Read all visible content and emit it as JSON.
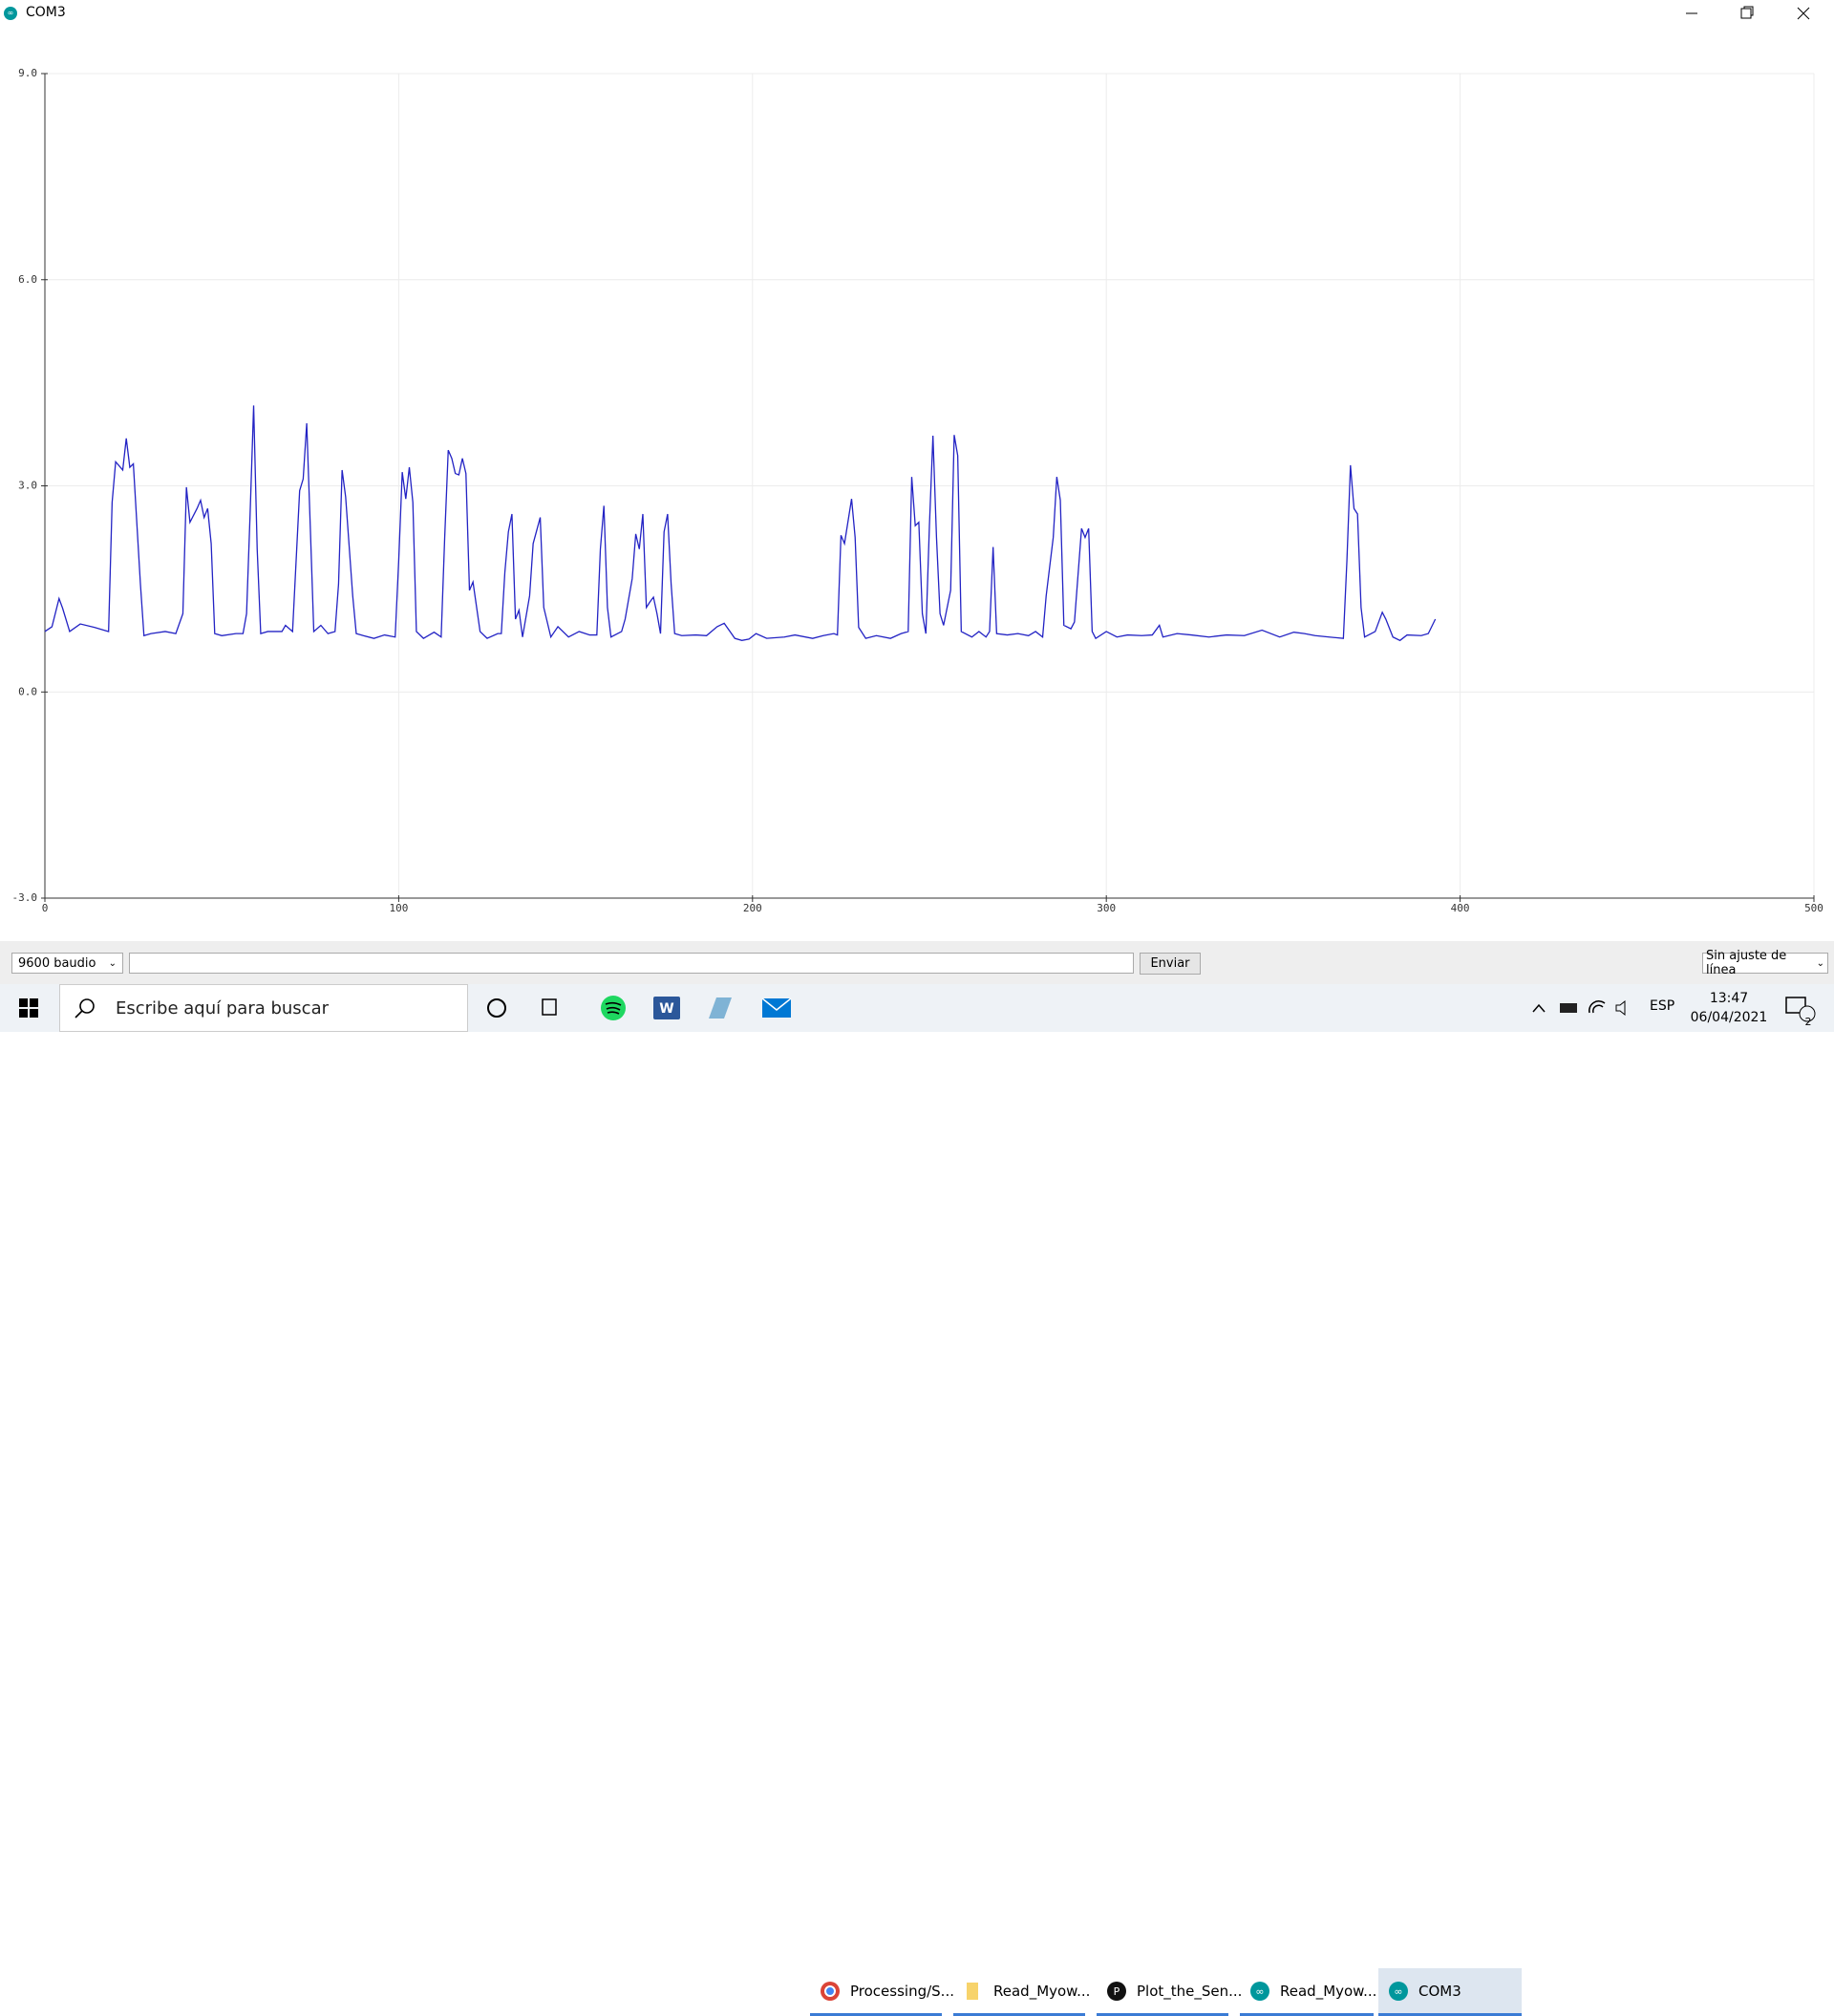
{
  "window": {
    "title": "COM3"
  },
  "chart_data": {
    "type": "line",
    "x": [
      0,
      2,
      4,
      5,
      7,
      10,
      14,
      18,
      19,
      20,
      22,
      23,
      24,
      25,
      27,
      28,
      30,
      34,
      37,
      39,
      40,
      41,
      43,
      44,
      45,
      46,
      47,
      48,
      50,
      54,
      56,
      57,
      58,
      59,
      60,
      61,
      63,
      67,
      68,
      70,
      72,
      73,
      74,
      75,
      76,
      78,
      80,
      82,
      83,
      84,
      85,
      87,
      88,
      90,
      93,
      96,
      99,
      100,
      101,
      102,
      103,
      104,
      105,
      107,
      110,
      112,
      113,
      114,
      115,
      116,
      117,
      118,
      119,
      120,
      121,
      123,
      125,
      128,
      129,
      130,
      131,
      132,
      133,
      134,
      135,
      137,
      138,
      140,
      141,
      143,
      145,
      148,
      151,
      154,
      156,
      157,
      158,
      159,
      160,
      163,
      164,
      166,
      167,
      168,
      169,
      170,
      171,
      172,
      173,
      174,
      175,
      176,
      177,
      178,
      180,
      184,
      187,
      190,
      192,
      195,
      197,
      199,
      201,
      204,
      209,
      212,
      217,
      220,
      223,
      224,
      225,
      226,
      228,
      229,
      230,
      232,
      235,
      239,
      242,
      244,
      245,
      246,
      247,
      248,
      249,
      250,
      251,
      252,
      253,
      254,
      256,
      257,
      258,
      259,
      262,
      264,
      266,
      267,
      268,
      269,
      272,
      275,
      278,
      280,
      282,
      283,
      285,
      286,
      287,
      288,
      290,
      291,
      293,
      294,
      295,
      296,
      297,
      300,
      303,
      306,
      310,
      313,
      315,
      316,
      320,
      324,
      329,
      334,
      339,
      344,
      349,
      353,
      356,
      359,
      363,
      367,
      368,
      369,
      370,
      371,
      372,
      373,
      376,
      378,
      379,
      381,
      383,
      385,
      389,
      391,
      393
    ],
    "values": [
      0.88,
      0.95,
      1.36,
      1.22,
      0.88,
      0.99,
      0.94,
      0.88,
      2.76,
      3.35,
      3.23,
      3.69,
      3.27,
      3.32,
      1.57,
      0.82,
      0.85,
      0.88,
      0.85,
      1.14,
      2.98,
      2.47,
      2.67,
      2.79,
      2.54,
      2.67,
      2.16,
      0.85,
      0.82,
      0.85,
      0.85,
      1.14,
      2.59,
      4.17,
      2.08,
      0.85,
      0.88,
      0.88,
      0.97,
      0.88,
      2.93,
      3.1,
      3.91,
      2.42,
      0.88,
      0.97,
      0.85,
      0.88,
      1.57,
      3.23,
      2.84,
      1.4,
      0.85,
      0.82,
      0.78,
      0.83,
      0.8,
      1.91,
      3.2,
      2.81,
      3.27,
      2.76,
      0.88,
      0.78,
      0.87,
      0.8,
      2.25,
      3.52,
      3.4,
      3.18,
      3.16,
      3.4,
      3.18,
      1.48,
      1.6,
      0.88,
      0.78,
      0.85,
      0.85,
      1.74,
      2.33,
      2.59,
      1.06,
      1.19,
      0.8,
      1.4,
      2.16,
      2.54,
      1.23,
      0.8,
      0.95,
      0.8,
      0.88,
      0.83,
      0.83,
      2.08,
      2.71,
      1.23,
      0.8,
      0.88,
      1.06,
      1.65,
      2.3,
      2.08,
      2.59,
      1.23,
      1.31,
      1.38,
      1.14,
      0.85,
      2.33,
      2.59,
      1.57,
      0.85,
      0.82,
      0.83,
      0.82,
      0.95,
      1.0,
      0.78,
      0.75,
      0.77,
      0.85,
      0.78,
      0.8,
      0.83,
      0.78,
      0.82,
      0.85,
      0.83,
      2.28,
      2.16,
      2.81,
      2.25,
      0.94,
      0.78,
      0.82,
      0.78,
      0.85,
      0.88,
      3.13,
      2.42,
      2.47,
      1.14,
      0.85,
      2.42,
      3.73,
      2.25,
      1.14,
      0.97,
      1.48,
      3.74,
      3.44,
      0.88,
      0.8,
      0.88,
      0.8,
      0.88,
      2.11,
      0.85,
      0.83,
      0.85,
      0.82,
      0.88,
      0.8,
      1.4,
      2.25,
      3.13,
      2.79,
      0.97,
      0.92,
      1.02,
      2.38,
      2.25,
      2.38,
      0.88,
      0.78,
      0.88,
      0.8,
      0.83,
      0.82,
      0.83,
      0.97,
      0.8,
      0.85,
      0.83,
      0.8,
      0.83,
      0.82,
      0.9,
      0.8,
      0.87,
      0.85,
      0.82,
      0.8,
      0.78,
      1.91,
      3.3,
      2.67,
      2.59,
      1.23,
      0.8,
      0.88,
      1.16,
      1.06,
      0.8,
      0.75,
      0.83,
      0.82,
      0.85,
      1.06
    ],
    "color": "#2323c4",
    "xlim": [
      0,
      500
    ],
    "ylim": [
      -3,
      9
    ],
    "xticks": [
      0,
      100,
      200,
      300,
      400,
      500
    ],
    "yticks": [
      {
        "value": -3,
        "label": "-3.0"
      },
      {
        "value": 0,
        "label": "0.0"
      },
      {
        "value": 3,
        "label": "3.0"
      },
      {
        "value": 6,
        "label": "6.0"
      },
      {
        "value": 9,
        "label": "9.0"
      }
    ],
    "grid": true
  },
  "controls": {
    "baud": "9600 baudio",
    "send": "Enviar",
    "line_ending": "Sin ajuste de línea"
  },
  "taskbar": {
    "search": "Escribe aquí para buscar",
    "apps": [
      "Processing/S...",
      "Read_Myow...",
      "Plot_the_Sen...",
      "Read_Myow...",
      "COM3"
    ],
    "language": "ESP",
    "time": "13:47",
    "date": "06/04/2021",
    "notifications": "2"
  }
}
